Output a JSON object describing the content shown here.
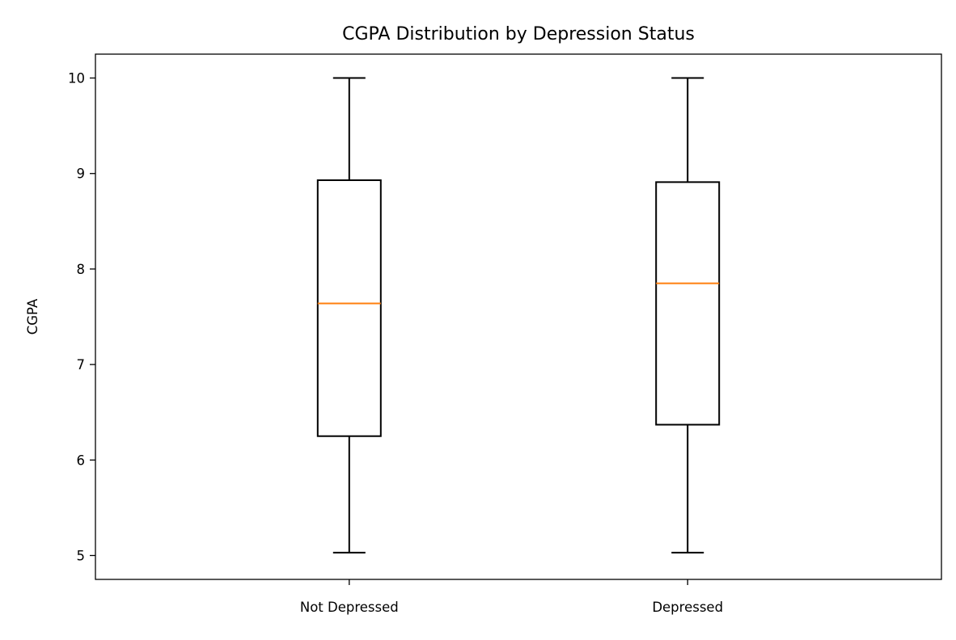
{
  "chart_data": {
    "type": "box",
    "title": "CGPA Distribution by Depression Status",
    "xlabel": "",
    "ylabel": "CGPA",
    "ylim": [
      4.75,
      10.25
    ],
    "yticks": [
      5,
      6,
      7,
      8,
      9,
      10
    ],
    "grid": false,
    "categories": [
      "Not Depressed",
      "Depressed"
    ],
    "boxes": [
      {
        "category": "Not Depressed",
        "whisker_low": 5.03,
        "q1": 6.25,
        "median": 7.64,
        "q3": 8.93,
        "whisker_high": 10.0
      },
      {
        "category": "Depressed",
        "whisker_low": 5.03,
        "q1": 6.37,
        "median": 7.85,
        "q3": 8.91,
        "whisker_high": 10.0
      }
    ],
    "colors": {
      "box": "#000000",
      "median": "#ff7f0e",
      "axes": "#000000",
      "background": "#ffffff"
    }
  }
}
